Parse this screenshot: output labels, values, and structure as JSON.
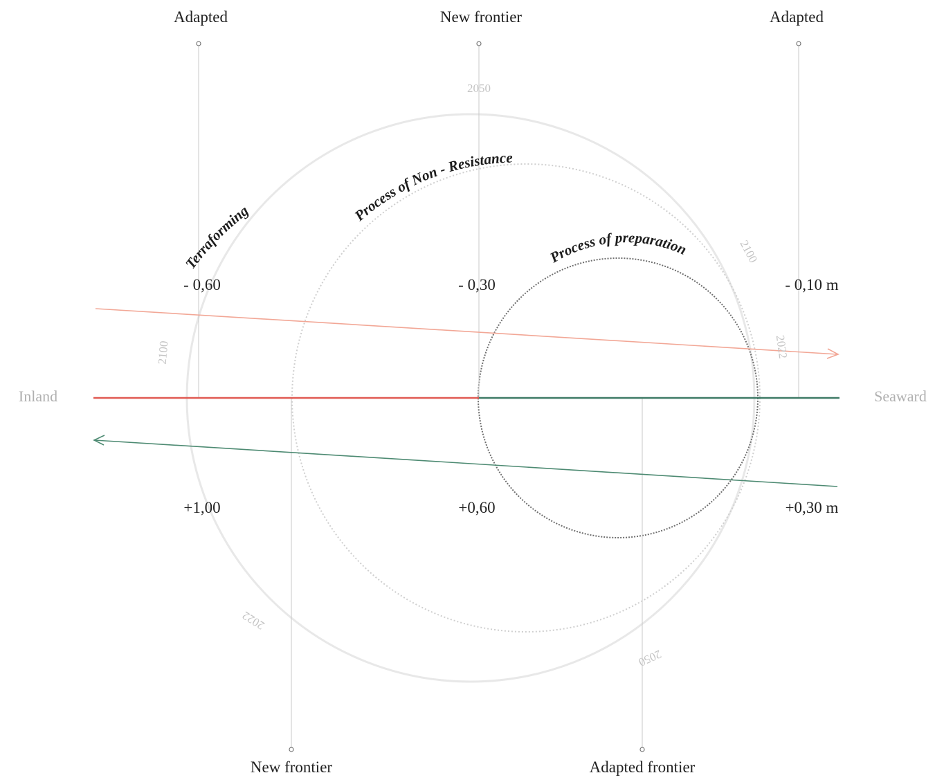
{
  "top_labels": {
    "left": "Adapted",
    "center": "New frontier",
    "right": "Adapted"
  },
  "bottom_labels": {
    "left": "New frontier",
    "right": "Adapted frontier"
  },
  "side_labels": {
    "left": "Inland",
    "right": "Seaward"
  },
  "upper_values": [
    "- 0,60",
    "- 0,30",
    "- 0,10 m"
  ],
  "lower_values": [
    "+1,00",
    "+0,60",
    "+0,30 m"
  ],
  "processes": {
    "outer": "Terraforming",
    "middle": "Process of Non - Resistance",
    "inner": "Process of preparation"
  },
  "years": {
    "top": "2050",
    "right_upper": "2100",
    "right_mid": "2022",
    "left": "2100",
    "bottom_left": "2022",
    "bottom_right": "2050"
  },
  "colors": {
    "salmon_arrow": "#f2a796",
    "red_axis": "#e05a52",
    "teal_axis": "#3e7a66",
    "teal_arrow": "#4d8a72",
    "guide_line": "#c9c9c9",
    "outer_circle": "#e8e8e8",
    "middle_circle": "#cfcfcf",
    "inner_circle": "#6e6e6e",
    "year_text": "#c4c4c4"
  }
}
